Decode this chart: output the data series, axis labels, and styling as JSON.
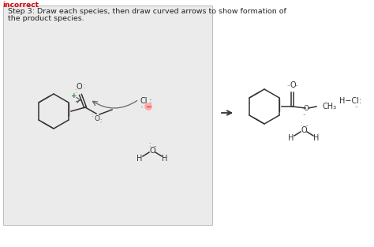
{
  "title_text": "incorrect",
  "title_color": "#cc0000",
  "box_text_line1": "Step 3: Draw each species, then draw curved arrows to show formation of",
  "box_text_line2": "the product species.",
  "bg_color": "#ffffff",
  "box_bg": "#ebebeb",
  "text_color": "#222222",
  "font_size_label": 6.8,
  "font_size_atom": 7.0,
  "font_size_small": 5.5
}
